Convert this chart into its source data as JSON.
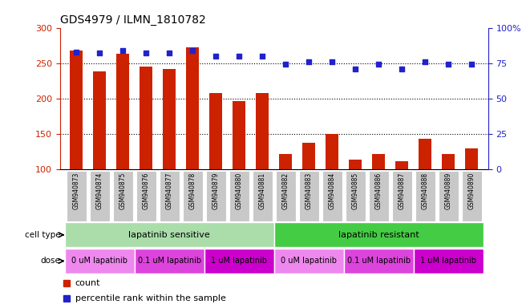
{
  "title": "GDS4979 / ILMN_1810782",
  "samples": [
    "GSM940873",
    "GSM940874",
    "GSM940875",
    "GSM940876",
    "GSM940877",
    "GSM940878",
    "GSM940879",
    "GSM940880",
    "GSM940881",
    "GSM940882",
    "GSM940883",
    "GSM940884",
    "GSM940885",
    "GSM940886",
    "GSM940887",
    "GSM940888",
    "GSM940889",
    "GSM940890"
  ],
  "counts": [
    268,
    238,
    263,
    245,
    242,
    272,
    208,
    196,
    208,
    122,
    138,
    150,
    114,
    122,
    111,
    143,
    122,
    130
  ],
  "percentile_ranks": [
    83,
    82,
    84,
    82,
    82,
    84,
    80,
    80,
    80,
    74,
    76,
    76,
    71,
    74,
    71,
    76,
    74,
    74
  ],
  "bar_color": "#cc2200",
  "dot_color": "#2222cc",
  "ylim_left": [
    100,
    300
  ],
  "ylim_right": [
    0,
    100
  ],
  "yticks_left": [
    100,
    150,
    200,
    250,
    300
  ],
  "yticks_right": [
    0,
    25,
    50,
    75,
    100
  ],
  "cell_type_sensitive_color": "#aaddaa",
  "cell_type_resistant_color": "#44cc44",
  "dose_colors": [
    "#ee88ee",
    "#dd44dd",
    "#cc00cc",
    "#ee88ee",
    "#dd44dd",
    "#cc00cc"
  ],
  "dose_groups": [
    {
      "label": "0 uM lapatinib",
      "start": 0,
      "end": 3
    },
    {
      "label": "0.1 uM lapatinib",
      "start": 3,
      "end": 6
    },
    {
      "label": "1 uM lapatinib",
      "start": 6,
      "end": 9
    },
    {
      "label": "0 uM lapatinib",
      "start": 9,
      "end": 12
    },
    {
      "label": "0.1 uM lapatinib",
      "start": 12,
      "end": 15
    },
    {
      "label": "1 uM lapatinib",
      "start": 15,
      "end": 18
    }
  ],
  "bg_color": "#ffffff",
  "tick_label_color_left": "#cc2200",
  "tick_label_color_right": "#2222cc",
  "grid_color": "#000000",
  "xticklabel_bg": "#c8c8c8"
}
